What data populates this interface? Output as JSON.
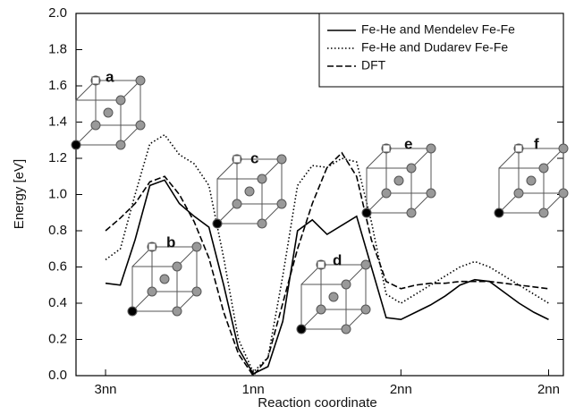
{
  "chart_data": {
    "type": "line",
    "xlabel": "Reaction coordinate",
    "ylabel": "Energy [eV]",
    "x": [
      0,
      0.1,
      0.2,
      0.3,
      0.4,
      0.5,
      0.6,
      0.7,
      0.8,
      0.9,
      1.0,
      1.1,
      1.2,
      1.3,
      1.4,
      1.5,
      1.6,
      1.7,
      1.8,
      1.9,
      2.0,
      2.1,
      2.2,
      2.3,
      2.4,
      2.5,
      2.6,
      2.7,
      2.8,
      2.9,
      3.0
    ],
    "series": [
      {
        "name": "Fe-He and Mendelev Fe-Fe",
        "color": "#000000",
        "style": "solid",
        "values": [
          0.51,
          0.5,
          0.75,
          1.05,
          1.08,
          0.95,
          0.88,
          0.82,
          0.5,
          0.15,
          0.01,
          0.05,
          0.3,
          0.8,
          0.86,
          0.78,
          0.83,
          0.88,
          0.6,
          0.32,
          0.31,
          0.35,
          0.39,
          0.44,
          0.5,
          0.53,
          0.52,
          0.46,
          0.4,
          0.35,
          0.31
        ]
      },
      {
        "name": "Fe-He and Dudarev Fe-Fe",
        "color": "#000000",
        "style": "dotted",
        "values": [
          0.64,
          0.7,
          1.0,
          1.28,
          1.33,
          1.22,
          1.17,
          1.05,
          0.65,
          0.2,
          0.02,
          0.1,
          0.55,
          1.05,
          1.16,
          1.15,
          1.2,
          1.18,
          0.85,
          0.45,
          0.4,
          0.45,
          0.5,
          0.55,
          0.6,
          0.63,
          0.6,
          0.55,
          0.5,
          0.45,
          0.4
        ]
      },
      {
        "name": "DFT",
        "color": "#000000",
        "style": "dashed",
        "values": [
          0.8,
          0.87,
          0.95,
          1.07,
          1.1,
          1.0,
          0.85,
          0.65,
          0.35,
          0.12,
          0.0,
          0.1,
          0.4,
          0.7,
          0.95,
          1.15,
          1.23,
          1.1,
          0.75,
          0.52,
          0.48,
          0.5,
          0.51,
          0.51,
          0.52,
          0.52,
          0.52,
          0.51,
          0.5,
          0.49,
          0.48
        ]
      }
    ],
    "xlim": [
      -0.2,
      3.1
    ],
    "xticks": [
      {
        "value": 0,
        "label": "3nn"
      },
      {
        "value": 1,
        "label": "1nn"
      },
      {
        "value": 2,
        "label": "2nn"
      },
      {
        "value": 3,
        "label": "2nn"
      }
    ],
    "ylim": [
      0,
      2
    ],
    "yticks": [
      {
        "value": 0,
        "label": "0.0"
      },
      {
        "value": 0.2,
        "label": "0.2"
      },
      {
        "value": 0.4,
        "label": "0.4"
      },
      {
        "value": 0.6,
        "label": "0.6"
      },
      {
        "value": 0.8,
        "label": "0.8"
      },
      {
        "value": 1.0,
        "label": "1.0"
      },
      {
        "value": 1.2,
        "label": "1.2"
      },
      {
        "value": 1.4,
        "label": "1.4"
      },
      {
        "value": 1.6,
        "label": "1.6"
      },
      {
        "value": 1.8,
        "label": "1.8"
      },
      {
        "value": 2.0,
        "label": "2.0"
      }
    ],
    "legend": "upper right",
    "annotations": [
      "a",
      "b",
      "c",
      "d",
      "e",
      "f"
    ]
  }
}
